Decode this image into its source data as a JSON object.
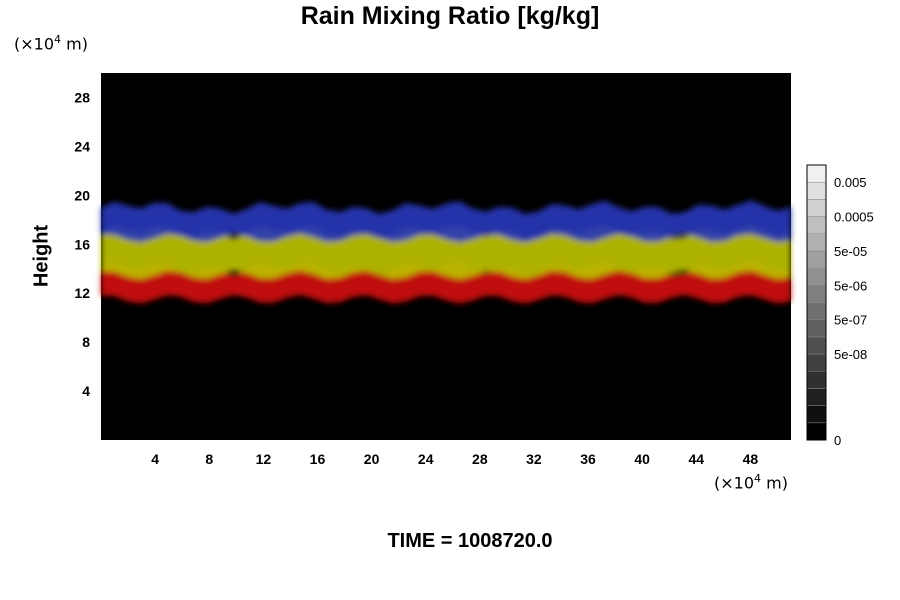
{
  "chart_data": {
    "type": "heatmap",
    "title": "Rain Mixing Ratio [kg/kg]",
    "ylabel": "Height",
    "xlabel": "",
    "x_unit": {
      "prefix": "(×10",
      "exp": "4",
      "suffix": " m)"
    },
    "y_unit": {
      "prefix": "(×10",
      "exp": "4",
      "suffix": " m)"
    },
    "xlim": [
      0,
      51
    ],
    "ylim": [
      0,
      30
    ],
    "x_ticks": [
      4,
      8,
      12,
      16,
      20,
      24,
      28,
      32,
      36,
      40,
      44,
      48
    ],
    "y_ticks": [
      4,
      8,
      12,
      16,
      20,
      24,
      28
    ],
    "bands": [
      {
        "name": "red",
        "color": "#d01010",
        "bottom": 11.5,
        "top": 14
      },
      {
        "name": "yellow",
        "color": "#bcc000",
        "bottom": 13.5,
        "top": 17
      },
      {
        "name": "blue",
        "color": "#2838b8",
        "bottom": 16.5,
        "top": 19
      }
    ],
    "colorbar": {
      "labels": [
        "0.005",
        "0.0005",
        "5e-05",
        "5e-06",
        "5e-07",
        "5e-08",
        "0"
      ],
      "label_levels": [
        15,
        13,
        11,
        9,
        7,
        5,
        0
      ],
      "n_levels": 16,
      "range": [
        0,
        16
      ]
    },
    "footer": "TIME = 1008720.0"
  }
}
